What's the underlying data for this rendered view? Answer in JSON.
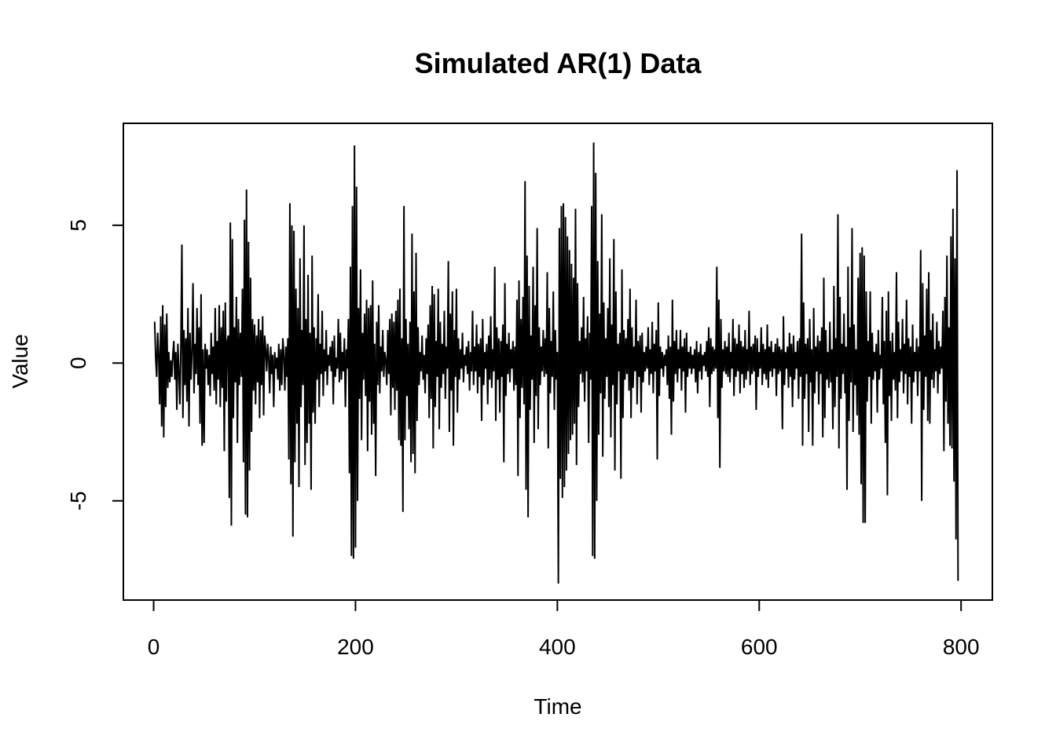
{
  "chart_data": {
    "type": "line",
    "title": "Simulated AR(1) Data",
    "xlabel": "Time",
    "ylabel": "Value",
    "xlim": [
      -30,
      831
    ],
    "ylim": [
      -8.6,
      8.7
    ],
    "x_ticks": [
      0,
      200,
      400,
      600,
      800
    ],
    "y_ticks": [
      -5,
      0,
      5
    ],
    "grid": false,
    "line_color": "#000000",
    "series": [
      {
        "x_start": 1,
        "x_step": 1,
        "values": [
          1.5,
          0.2,
          -0.5,
          1.1,
          0.3,
          -1.5,
          1.7,
          -2.3,
          2.1,
          -2.7,
          1.4,
          -1.6,
          1.8,
          -0.9,
          0.4,
          -0.7,
          0.1,
          -0.5,
          0.3,
          0.8,
          -0.6,
          0.4,
          -1.7,
          0.7,
          -0.3,
          -1.5,
          0.6,
          4.3,
          -2.0,
          1.2,
          -0.8,
          0.9,
          -1.4,
          2.0,
          -2.3,
          1.1,
          -0.6,
          0.4,
          2.9,
          -1.1,
          0.7,
          -0.4,
          2.0,
          -0.8,
          1.3,
          -2.2,
          2.5,
          -3.0,
          0.5,
          -2.9,
          0.7,
          -0.2,
          0.5,
          -0.8,
          0.3,
          -1.2,
          1.1,
          -0.4,
          0.6,
          -1.0,
          2.0,
          -1.5,
          0.8,
          -0.6,
          2.1,
          -1.6,
          1.3,
          -0.9,
          1.9,
          -3.2,
          2.2,
          -1.4,
          0.8,
          1.0,
          -4.9,
          5.1,
          -5.9,
          4.5,
          -2.0,
          1.3,
          -0.7,
          2.4,
          -2.9,
          1.6,
          -0.8,
          1.1,
          -0.5,
          2.7,
          -3.6,
          5.2,
          -5.5,
          6.3,
          -5.6,
          4.4,
          -3.9,
          3.1,
          -2.5,
          1.6,
          -1.0,
          1.4,
          -1.5,
          1.0,
          -0.7,
          1.6,
          -2.0,
          1.2,
          -0.8,
          1.7,
          -1.9,
          1.0,
          0.5,
          -0.3,
          0.7,
          0.2,
          -1.1,
          0.6,
          -0.4,
          0.3,
          -1.6,
          0.4,
          -0.2,
          0.2,
          -0.6,
          0.7,
          -1.0,
          0.5,
          -0.8,
          0.9,
          0.3,
          -1.0,
          0.6,
          -0.5,
          0.9,
          -3.5,
          5.8,
          -4.4,
          5.0,
          -6.3,
          4.8,
          -3.6,
          2.7,
          -2.2,
          2.0,
          -4.5,
          3.8,
          -1.6,
          1.2,
          -0.8,
          5.0,
          -3.7,
          1.6,
          -2.9,
          3.2,
          -2.2,
          1.1,
          -4.6,
          3.9,
          -1.8,
          1.3,
          -2.2,
          0.9,
          -0.6,
          2.5,
          -1.6,
          0.7,
          -0.4,
          1.9,
          -1.2,
          0.5,
          -0.3,
          1.2,
          -0.8,
          0.3,
          -0.1,
          0.6,
          -0.3,
          0.8,
          -1.5,
          1.0,
          -0.5,
          0.2,
          -0.2,
          1.6,
          -0.7,
          1.1,
          -0.6,
          0.4,
          -0.3,
          0.9,
          -1.6,
          0.5,
          -0.2,
          1.6,
          -4.0,
          3.5,
          -7.0,
          5.7,
          -7.1,
          7.9,
          -6.7,
          6.4,
          -5.0,
          2.0,
          -1.3,
          3.4,
          -2.8,
          1.1,
          -0.6,
          1.8,
          -1.2,
          2.3,
          -3.2,
          2.0,
          -1.4,
          2.1,
          -2.6,
          3.0,
          -2.2,
          0.7,
          -4.1,
          1.5,
          -0.8,
          2.1,
          -1.1,
          0.6,
          -0.3,
          1.2,
          -0.5,
          0.4,
          0.1,
          -0.8,
          1.2,
          -0.4,
          1.6,
          -1.9,
          1.8,
          -0.9,
          1.5,
          -1.7,
          1.9,
          -1.0,
          2.3,
          -2.8,
          2.7,
          -3.0,
          0.9,
          -5.4,
          5.7,
          -2.8,
          1.6,
          -1.2,
          0.7,
          -2.4,
          1.5,
          -3.6,
          4.7,
          -3.3,
          2.6,
          -4.0,
          4.0,
          -2.1,
          1.3,
          -0.8,
          0.4,
          -0.3,
          1.0,
          -0.6,
          0.3,
          -1.1,
          0.9,
          -0.4,
          1.4,
          -2.0,
          2.1,
          -1.3,
          2.8,
          -3.1,
          2.5,
          -1.6,
          0.8,
          -0.5,
          2.7,
          -2.4,
          1.5,
          -0.9,
          0.7,
          -0.4,
          1.9,
          -1.3,
          0.6,
          -0.2,
          3.7,
          -2.5,
          1.8,
          -1.0,
          2.6,
          -3.0,
          1.2,
          -0.5,
          2.7,
          -1.8,
          0.9,
          -0.6,
          0.5,
          -0.2,
          1.1,
          -0.7,
          0.3,
          -0.1,
          0.6,
          -0.4,
          0.8,
          -1.0,
          0.4,
          -0.3,
          1.9,
          -0.8,
          0.6,
          -0.3,
          1.4,
          -1.1,
          0.7,
          -0.5,
          0.9,
          -2.1,
          1.6,
          -0.8,
          0.4,
          -0.2,
          0.7,
          -1.5,
          1.0,
          -0.6,
          1.7,
          -0.9,
          0.5,
          -0.3,
          3.5,
          -2.1,
          1.3,
          -0.6,
          0.9,
          -1.8,
          0.8,
          -0.5,
          1.4,
          -3.6,
          2.9,
          -1.2,
          0.7,
          -0.4,
          1.1,
          -0.7,
          0.5,
          -0.2,
          0.8,
          -1.0,
          0.6,
          -0.8,
          2.3,
          -4.1,
          3.0,
          -2.0,
          1.6,
          -0.9,
          2.4,
          -1.5,
          6.6,
          -4.6,
          3.9,
          -5.6,
          2.8,
          -1.7,
          1.0,
          -0.6,
          3.5,
          -2.9,
          2.1,
          -1.2,
          4.9,
          -2.4,
          1.3,
          -0.8,
          0.6,
          -0.3,
          1.2,
          -0.5,
          0.9,
          -0.4,
          3.3,
          -3.1,
          2.0,
          -1.1,
          0.8,
          -0.5,
          2.6,
          -1.7,
          1.2,
          -0.6,
          0.4,
          -8.0,
          4.9,
          -4.2,
          5.7,
          -4.9,
          5.8,
          -4.5,
          5.3,
          -3.9,
          4.6,
          -3.3,
          4.1,
          -2.8,
          3.6,
          -2.6,
          3.1,
          -2.2,
          5.6,
          -3.7,
          2.9,
          -1.6,
          0.8,
          -0.4,
          1.3,
          -0.7,
          2.4,
          -1.4,
          0.9,
          -0.3,
          1.7,
          -2.9,
          1.1,
          -0.6,
          5.7,
          -7.0,
          8.0,
          -7.1,
          6.9,
          -5.0,
          3.7,
          -2.6,
          1.8,
          -1.1,
          5.4,
          -3.4,
          2.2,
          -1.3,
          0.9,
          -0.5,
          2.0,
          -1.6,
          3.8,
          -2.7,
          1.4,
          -0.8,
          4.5,
          -3.9,
          2.6,
          -1.5,
          0.7,
          -0.3,
          1.1,
          -4.2,
          3.4,
          -2.0,
          1.2,
          -0.6,
          0.9,
          -0.4,
          1.6,
          -1.0,
          2.7,
          -2.0,
          1.3,
          -0.9,
          0.6,
          -0.3,
          2.3,
          -1.5,
          0.8,
          -0.5,
          1.0,
          -1.8,
          1.1,
          -0.7,
          0.4,
          -0.3,
          0.6,
          -0.2,
          1.3,
          -0.8,
          0.5,
          -0.4,
          1.5,
          -1.1,
          0.7,
          -0.3,
          1.2,
          -3.5,
          2.2,
          -1.2,
          0.6,
          -0.2,
          0.4,
          -0.5,
          0.3,
          -0.1,
          0.5,
          -0.8,
          1.0,
          -1.3,
          0.6,
          -2.6,
          2.3,
          -1.4,
          0.8,
          -0.4,
          1.2,
          -0.7,
          0.5,
          -0.2,
          1.2,
          -1.0,
          0.6,
          -0.3,
          0.9,
          -1.8,
          1.1,
          -0.5,
          0.4,
          -0.2,
          0.6,
          -0.4,
          0.3,
          -0.2,
          0.5,
          -0.7,
          0.8,
          -1.1,
          0.4,
          -0.3,
          0.7,
          -0.6,
          0.3,
          -0.1,
          0.4,
          -0.3,
          0.8,
          -0.5,
          1.3,
          -1.6,
          0.9,
          -0.4,
          0.6,
          -0.3,
          0.5,
          -0.2,
          3.5,
          -2.0,
          2.3,
          -3.8,
          1.6,
          -0.9,
          0.5,
          -0.3,
          0.8,
          -0.4,
          0.6,
          -0.5,
          1.1,
          -0.7,
          0.4,
          -0.2,
          1.6,
          -1.2,
          0.9,
          -0.5,
          0.7,
          -0.3,
          1.4,
          -1.1,
          0.8,
          -0.4,
          0.6,
          -0.9,
          1.2,
          -0.6,
          0.5,
          -0.3,
          1.9,
          -0.8,
          0.6,
          -0.4,
          0.7,
          -0.3,
          1.0,
          -1.7,
          0.9,
          -0.5,
          0.4,
          -0.2,
          1.3,
          -0.8,
          0.7,
          -0.4,
          0.5,
          -0.6,
          1.4,
          -0.9,
          0.6,
          -0.3,
          0.8,
          -0.5,
          0.4,
          -0.2,
          0.7,
          -1.2,
          0.9,
          -0.4,
          0.6,
          -0.3,
          0.5,
          -2.4,
          1.7,
          -0.8,
          0.4,
          -0.2,
          0.6,
          -0.9,
          1.1,
          -0.5,
          0.7,
          -1.6,
          1.0,
          -0.6,
          0.4,
          -0.2,
          0.8,
          -1.3,
          0.9,
          -0.5,
          4.7,
          -3.0,
          2.2,
          -1.3,
          0.7,
          -0.4,
          0.9,
          -2.5,
          1.6,
          -0.7,
          0.5,
          -3.0,
          2.0,
          -1.1,
          0.6,
          -0.3,
          1.0,
          -1.5,
          0.8,
          -0.4,
          1.3,
          -2.7,
          3.1,
          -2.0,
          1.2,
          -0.6,
          0.4,
          -0.9,
          1.5,
          -0.7,
          0.5,
          -2.4,
          2.8,
          -1.6,
          0.9,
          -0.5,
          5.4,
          -3.1,
          2.4,
          -1.3,
          0.7,
          -0.4,
          1.8,
          -1.1,
          0.6,
          -4.6,
          3.5,
          -2.1,
          1.3,
          -0.7,
          4.9,
          -2.5,
          1.4,
          -0.8,
          0.5,
          -1.9,
          3.1,
          -2.6,
          4.0,
          -4.4,
          4.2,
          -5.8,
          3.9,
          -5.8,
          2.6,
          -1.4,
          0.8,
          -0.5,
          2.6,
          -2.2,
          1.1,
          -0.6,
          0.4,
          -0.3,
          0.7,
          -1.8,
          1.2,
          -0.6,
          0.3,
          -0.2,
          2.4,
          -1.5,
          0.8,
          -2.9,
          1.9,
          -4.8,
          2.6,
          -1.2,
          0.8,
          -2.1,
          1.1,
          -0.6,
          0.4,
          -1.0,
          3.3,
          -2.0,
          1.5,
          -0.7,
          0.5,
          -0.3,
          1.6,
          -1.1,
          0.7,
          -0.4,
          2.3,
          -1.5,
          0.9,
          -0.5,
          0.6,
          -2.2,
          1.4,
          -0.7,
          0.4,
          -0.3,
          0.9,
          -1.2,
          0.6,
          -0.3,
          4.1,
          -5.0,
          2.9,
          -1.7,
          1.0,
          -0.5,
          2.7,
          -2.1,
          3.3,
          -2.2,
          1.2,
          -0.6,
          1.8,
          -0.9,
          0.5,
          -0.3,
          1.5,
          -1.1,
          0.8,
          -0.4,
          0.6,
          -0.2,
          1.9,
          -3.2,
          2.4,
          -1.4,
          3.9,
          -2.2,
          1.3,
          -3.0,
          4.6,
          -3.1,
          5.6,
          -4.3,
          3.8,
          -6.4,
          7.0,
          -7.9
        ]
      }
    ]
  }
}
